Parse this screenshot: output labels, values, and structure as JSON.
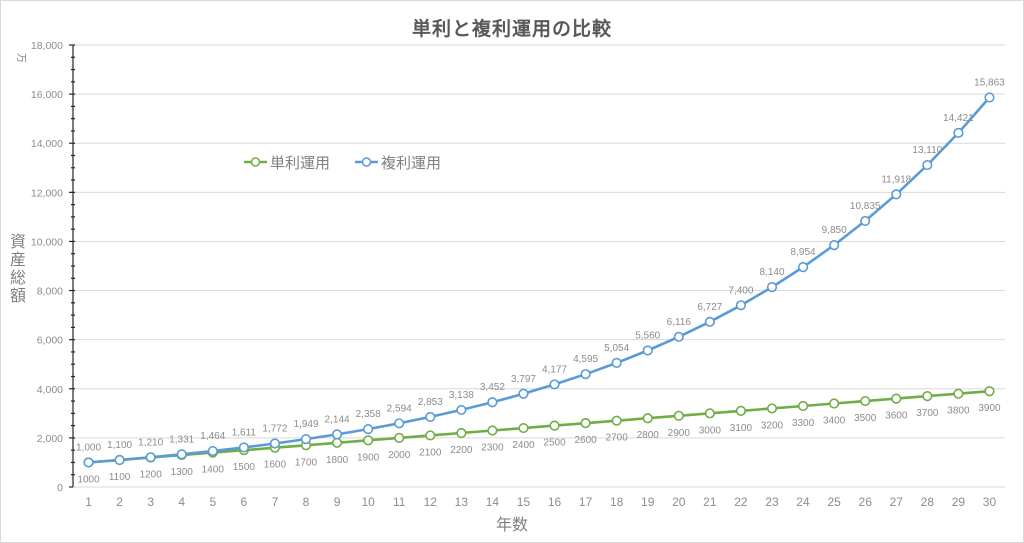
{
  "chart_data": {
    "type": "line",
    "title": "単利と複利運用の比較",
    "xlabel": "年数",
    "ylabel": "資産総額",
    "yunit": "万",
    "ylim": [
      0,
      18000
    ],
    "ytick_step": 2000,
    "yticks": [
      "0",
      "2,000",
      "4,000",
      "6,000",
      "8,000",
      "10,000",
      "12,000",
      "14,000",
      "16,000",
      "18,000"
    ],
    "grid": true,
    "legend_position": "upper-left-inside",
    "categories": [
      1,
      2,
      3,
      4,
      5,
      6,
      7,
      8,
      9,
      10,
      11,
      12,
      13,
      14,
      15,
      16,
      17,
      18,
      19,
      20,
      21,
      22,
      23,
      24,
      25,
      26,
      27,
      28,
      29,
      30
    ],
    "series": [
      {
        "name": "単利運用",
        "color": "#70ad47",
        "values": [
          1000,
          1100,
          1200,
          1300,
          1400,
          1500,
          1600,
          1700,
          1800,
          1900,
          2000,
          2100,
          2200,
          2300,
          2400,
          2500,
          2600,
          2700,
          2800,
          2900,
          3000,
          3100,
          3200,
          3300,
          3400,
          3500,
          3600,
          3700,
          3800,
          3900
        ],
        "labels": [
          "1000",
          "1100",
          "1200",
          "1300",
          "1400",
          "1500",
          "1600",
          "1700",
          "1800",
          "1900",
          "2000",
          "2100",
          "2200",
          "2300",
          "2400",
          "2500",
          "2600",
          "2700",
          "2800",
          "2900",
          "3000",
          "3100",
          "3200",
          "3300",
          "3400",
          "3500",
          "3600",
          "3700",
          "3800",
          "3900"
        ],
        "label_position": "below"
      },
      {
        "name": "複利運用",
        "color": "#5b9bd5",
        "values": [
          1000,
          1100,
          1210,
          1331,
          1464,
          1611,
          1772,
          1949,
          2144,
          2358,
          2594,
          2853,
          3138,
          3452,
          3797,
          4177,
          4595,
          5054,
          5560,
          6116,
          6727,
          7400,
          8140,
          8954,
          9850,
          10835,
          11918,
          13110,
          14421,
          15863
        ],
        "labels": [
          "1,000",
          "1,100",
          "1,210",
          "1,331",
          "1,464",
          "1,611",
          "1,772",
          "1,949",
          "2,144",
          "2,358",
          "2,594",
          "2,853",
          "3,138",
          "3,452",
          "3,797",
          "4,177",
          "4,595",
          "5,054",
          "5,560",
          "6,116",
          "6,727",
          "7,400",
          "8,140",
          "8,954",
          "9,850",
          "10,835",
          "11,918",
          "13,110",
          "14,421",
          "15,863"
        ],
        "label_position": "above"
      }
    ]
  }
}
